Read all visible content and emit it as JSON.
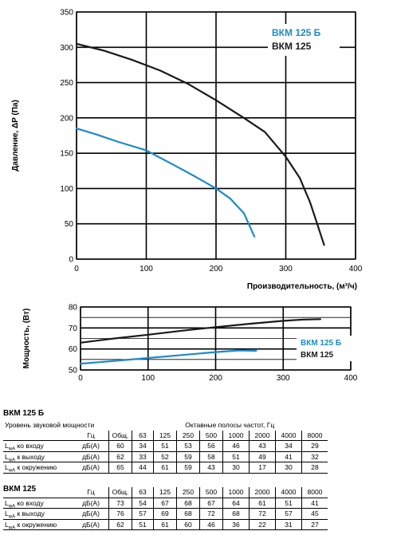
{
  "chart_data": [
    {
      "type": "line",
      "xlabel": "Производительность, (м³/ч)",
      "ylabel": "Давление, ΔP (Па)",
      "xlim": [
        0,
        400
      ],
      "ylim": [
        0,
        350
      ],
      "xticks": [
        "0",
        "100",
        "200",
        "300",
        "400"
      ],
      "yticks": [
        "0",
        "50",
        "100",
        "150",
        "200",
        "250",
        "300",
        "350"
      ],
      "grid": true,
      "legend_position": "top-right",
      "series": [
        {
          "name": "ВКМ 125 Б",
          "color": "#1a8bc9",
          "x": [
            0,
            30,
            60,
            100,
            140,
            170,
            200,
            220,
            240,
            255
          ],
          "y": [
            185,
            176,
            166,
            154,
            133,
            117,
            100,
            86,
            65,
            32
          ]
        },
        {
          "name": "ВКМ 125",
          "color": "#1a1a1a",
          "x": [
            0,
            40,
            80,
            120,
            160,
            200,
            240,
            270,
            300,
            320,
            335,
            345,
            355
          ],
          "y": [
            305,
            295,
            282,
            267,
            248,
            225,
            200,
            180,
            145,
            115,
            80,
            50,
            20
          ]
        }
      ]
    },
    {
      "type": "line",
      "xlabel": "",
      "ylabel": "Мощность, (Вт)",
      "xlim": [
        0,
        400
      ],
      "ylim": [
        50,
        80
      ],
      "xticks": [
        "0",
        "100",
        "200",
        "300",
        "400"
      ],
      "yticks": [
        "50",
        "60",
        "70",
        "80"
      ],
      "grid": true,
      "legend_position": "right",
      "series": [
        {
          "name": "ВКМ 125 Б",
          "color": "#1a8bc9",
          "x": [
            0,
            50,
            100,
            150,
            200,
            235,
            260
          ],
          "y": [
            53,
            54.3,
            55.7,
            57.1,
            58.5,
            59.3,
            59.1
          ]
        },
        {
          "name": "ВКМ 125",
          "color": "#1a1a1a",
          "x": [
            0,
            50,
            100,
            150,
            200,
            250,
            300,
            330,
            355
          ],
          "y": [
            63,
            65,
            66.8,
            68.7,
            70.4,
            72,
            73.4,
            74,
            74.2
          ]
        }
      ]
    }
  ],
  "tables": [
    {
      "title": "ВКМ 125 Б",
      "header_left": "Уровень звуковой мощности",
      "header_right": "Октавные полосы частот, Гц",
      "columns": [
        "Гц",
        "Общ.",
        "63",
        "125",
        "250",
        "500",
        "1000",
        "2000",
        "4000",
        "8000"
      ],
      "rows": [
        {
          "lsym": "L",
          "lsub": "wA",
          "label": " ко входу",
          "unit": "дБ(А)",
          "values": [
            "60",
            "34",
            "51",
            "53",
            "56",
            "46",
            "43",
            "34",
            "29"
          ]
        },
        {
          "lsym": "L",
          "lsub": "wA",
          "label": " к выходу",
          "unit": "дБ(А)",
          "values": [
            "62",
            "33",
            "52",
            "59",
            "58",
            "51",
            "49",
            "41",
            "32"
          ]
        },
        {
          "lsym": "L",
          "lsub": "wA",
          "label": " к окружению",
          "unit": "дБ(А)",
          "values": [
            "65",
            "44",
            "61",
            "59",
            "43",
            "30",
            "17",
            "30",
            "28"
          ]
        }
      ]
    },
    {
      "title": "ВКМ 125",
      "columns": [
        "Гц",
        "Общ.",
        "63",
        "125",
        "250",
        "500",
        "1000",
        "2000",
        "4000",
        "8000"
      ],
      "rows": [
        {
          "lsym": "L",
          "lsub": "wA",
          "label": " ко входу",
          "unit": "дБ(А)",
          "values": [
            "73",
            "54",
            "67",
            "68",
            "67",
            "64",
            "61",
            "51",
            "41"
          ]
        },
        {
          "lsym": "L",
          "lsub": "wA",
          "label": " к выходу",
          "unit": "дБ(А)",
          "values": [
            "76",
            "57",
            "69",
            "68",
            "72",
            "68",
            "72",
            "57",
            "45"
          ]
        },
        {
          "lsym": "L",
          "lsub": "wA",
          "label": " к окружению",
          "unit": "дБ(А)",
          "values": [
            "62",
            "51",
            "61",
            "60",
            "46",
            "36",
            "22",
            "31",
            "27"
          ]
        }
      ]
    }
  ]
}
